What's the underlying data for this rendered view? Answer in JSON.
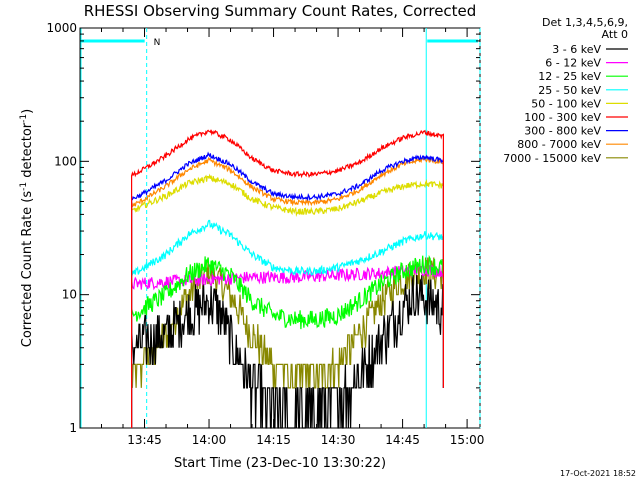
{
  "chart_data": {
    "type": "line",
    "title": "RHESSI Observing Summary Count Rates, Corrected",
    "xlabel": "Start Time (23-Dec-10 13:30:22)",
    "ylabel_main": "Corrected Count Rate (s",
    "ylabel_sup1": "-1",
    "ylabel_mid": " detector",
    "ylabel_sup2": "-1",
    "ylabel_end": ")",
    "yscale": "log",
    "ylim": [
      1,
      1000
    ],
    "y_ticks": [
      "1",
      "10",
      "100",
      "1000"
    ],
    "xlim_minutes": [
      0,
      93
    ],
    "x_ticks": [
      {
        "minute": 15,
        "label": "13:45"
      },
      {
        "minute": 30,
        "label": "14:00"
      },
      {
        "minute": 45,
        "label": "14:15"
      },
      {
        "minute": 60,
        "label": "14:30"
      },
      {
        "minute": 75,
        "label": "14:45"
      },
      {
        "minute": 90,
        "label": "15:00"
      }
    ],
    "legend_header": [
      "Det 1,3,4,5,6,9,",
      "Att 0"
    ],
    "legend_position": "top-right",
    "data_start_minute": 12,
    "data_end_minute": 84.5,
    "series": [
      {
        "name": "3 - 6 keV",
        "color": "#000000",
        "x": [
          12,
          15,
          20,
          25,
          30,
          33,
          36,
          40,
          45,
          50,
          55,
          60,
          65,
          70,
          75,
          78,
          81,
          84
        ],
        "y": [
          4,
          4.5,
          5,
          7,
          9,
          7,
          4,
          2,
          1.5,
          1.3,
          1.4,
          1.6,
          2.5,
          4.5,
          8,
          10,
          9,
          8
        ]
      },
      {
        "name": "6 - 12 keV",
        "color": "#ff00ff",
        "x": [
          12,
          20,
          30,
          40,
          50,
          60,
          70,
          80,
          84
        ],
        "y": [
          12,
          12.5,
          13,
          13.5,
          13.5,
          14,
          14.5,
          15.5,
          15
        ]
      },
      {
        "name": "12 - 25 keV",
        "color": "#00ff00",
        "x": [
          12,
          15,
          20,
          25,
          30,
          35,
          40,
          45,
          50,
          55,
          60,
          65,
          70,
          75,
          80,
          84
        ],
        "y": [
          7,
          8,
          10,
          14,
          17,
          14,
          9,
          7,
          6.5,
          6.5,
          7,
          9,
          12,
          15,
          17,
          16
        ]
      },
      {
        "name": "25 - 50 keV",
        "color": "#00ffff",
        "x": [
          12,
          15,
          20,
          25,
          30,
          35,
          40,
          45,
          50,
          55,
          60,
          65,
          70,
          75,
          80,
          84
        ],
        "y": [
          14,
          16,
          20,
          28,
          34,
          28,
          20,
          16,
          15,
          15,
          16,
          18,
          21,
          25,
          28,
          27
        ]
      },
      {
        "name": "50 - 100 keV",
        "color": "#dddd00",
        "x": [
          12,
          15,
          20,
          25,
          30,
          35,
          40,
          45,
          50,
          55,
          60,
          65,
          70,
          75,
          80,
          84
        ],
        "y": [
          42,
          47,
          55,
          68,
          75,
          68,
          52,
          45,
          42,
          42,
          44,
          50,
          58,
          65,
          68,
          66
        ]
      },
      {
        "name": "100 - 300 keV",
        "color": "#ff0000",
        "x": [
          12,
          15,
          20,
          25,
          30,
          35,
          40,
          45,
          50,
          55,
          60,
          65,
          70,
          75,
          80,
          84
        ],
        "y": [
          78,
          88,
          110,
          145,
          170,
          145,
          105,
          85,
          80,
          80,
          85,
          98,
          125,
          150,
          165,
          155
        ]
      },
      {
        "name": "300 - 800 keV",
        "color": "#0000ff",
        "x": [
          12,
          15,
          20,
          25,
          30,
          35,
          40,
          45,
          50,
          55,
          60,
          65,
          70,
          75,
          80,
          84
        ],
        "y": [
          52,
          58,
          72,
          95,
          112,
          95,
          70,
          57,
          54,
          54,
          57,
          66,
          85,
          100,
          108,
          102
        ]
      },
      {
        "name": "800 - 7000 keV",
        "color": "#ff8800",
        "x": [
          12,
          15,
          20,
          25,
          30,
          35,
          40,
          45,
          50,
          55,
          60,
          65,
          70,
          75,
          80,
          84
        ],
        "y": [
          46,
          52,
          65,
          86,
          102,
          86,
          64,
          52,
          49,
          49,
          52,
          61,
          79,
          95,
          104,
          99
        ]
      },
      {
        "name": "7000 - 15000 keV",
        "color": "#888800",
        "x": [
          12,
          15,
          20,
          25,
          30,
          35,
          40,
          45,
          50,
          55,
          60,
          65,
          70,
          75,
          80,
          84
        ],
        "y": [
          2.5,
          3,
          5,
          10,
          15,
          10,
          5,
          3,
          2.5,
          2.5,
          3,
          5,
          9,
          13,
          15,
          14
        ]
      }
    ],
    "night_segments": [
      {
        "start_minute": 0,
        "end_minute": 15.5
      },
      {
        "start_minute": 80.5,
        "end_minute": 93
      }
    ],
    "saa_marker_minute": 15.5,
    "saa_label": "N",
    "timestamp": "17-Oct-2021 18:52"
  }
}
